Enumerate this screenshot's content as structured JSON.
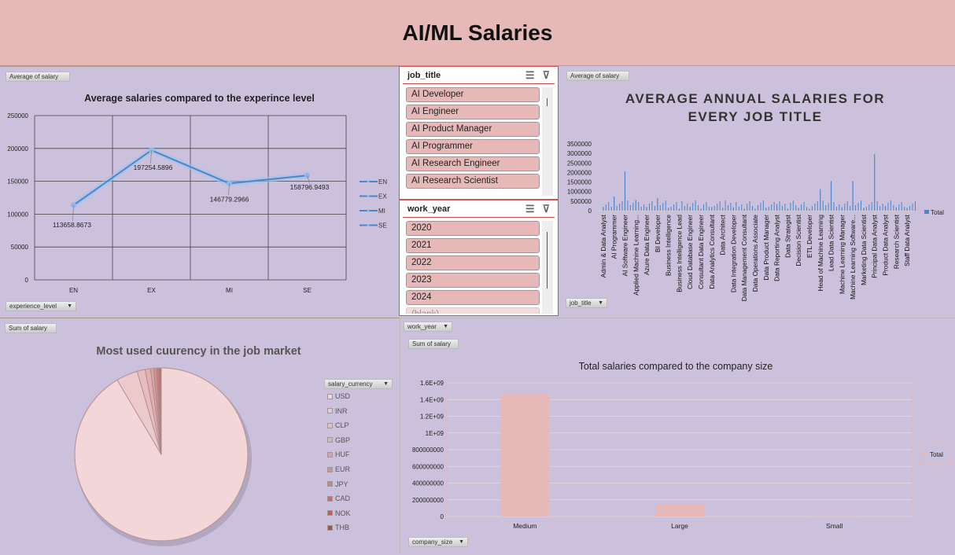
{
  "title": "AI/ML Salaries",
  "line_panel": {
    "field_value": "Average of salary",
    "field_axis": "experience_level"
  },
  "slicers": {
    "job_title": {
      "label": "job_title",
      "items": [
        "AI Developer",
        "AI Engineer",
        "AI Product Manager",
        "AI Programmer",
        "AI Research Engineer",
        "AI Research Scientist"
      ]
    },
    "work_year": {
      "label": "work_year",
      "items": [
        "2020",
        "2021",
        "2022",
        "2023",
        "2024",
        "(blank)"
      ]
    },
    "icons": [
      "multi-select-icon",
      "clear-filter-icon"
    ]
  },
  "jobs_panel": {
    "field_value": "Average of salary",
    "field_axis": "job_title"
  },
  "pie_panel": {
    "field_value": "Sum of salary",
    "field_legend": "salary_currency"
  },
  "size_panel": {
    "field_filter": "work_year",
    "field_value": "Sum of salary",
    "field_axis": "company_size"
  },
  "colors": {
    "title_band": "#e6b8b8",
    "panel": "#cbc1dc",
    "line": "#4a86c8",
    "bar_blue": "#4a86c8",
    "bar_pink": "#e6b8b8"
  },
  "chart_data": [
    {
      "type": "line",
      "title": "Average salaries compared to the experince level",
      "categories": [
        "EN",
        "EX",
        "MI",
        "SE"
      ],
      "values": [
        113658.8673,
        197254.5896,
        146779.2966,
        158796.9493
      ],
      "data_labels": [
        "113658.8673",
        "197254.5896",
        "146779.2966",
        "158796.9493"
      ],
      "ylim": [
        0,
        250000
      ],
      "yticks": [
        "0",
        "50000",
        "100000",
        "150000",
        "200000",
        "250000"
      ],
      "legend": [
        "EN",
        "EX",
        "MI",
        "SE"
      ],
      "legend_position": "right",
      "grid": true
    },
    {
      "type": "bar",
      "title": "AVERAGE ANNUAL SALARIES FOR EVERY JOB TITLE",
      "categories": [
        "Admin & Data Analyst",
        "AI Programmer",
        "AI Software Engineer",
        "Applied Machine Learning...",
        "Azure Data Engineer",
        "BI Developer",
        "Business Intelligence",
        "Business Intelligence Lead",
        "Cloud Database Engineer",
        "Consultant Data Engineer",
        "Data Analytics Consultant",
        "Data Architect",
        "Data Integration Developer",
        "Data Management Consultant",
        "Data Operations Associate",
        "Data Product Manager",
        "Data Reporting Analyst",
        "Data Strategist",
        "Decision Scientist",
        "ETL Developer",
        "Head of Machine Learning",
        "Lead Data Scientist",
        "Machine Learning Manager",
        "Machine Learning Software...",
        "Marketing Data Scientist",
        "Principal Data Analyst",
        "Product Data Analyst",
        "Research Scientist",
        "Staff Data Analyst"
      ],
      "values": [
        200000,
        750000,
        2050000,
        550000,
        200000,
        650000,
        150000,
        100000,
        200000,
        100000,
        200000,
        150000,
        180000,
        100000,
        100000,
        150000,
        350000,
        100000,
        150000,
        100000,
        1130000,
        1550000,
        180000,
        1550000,
        150000,
        2950000,
        250000,
        180000,
        150000
      ],
      "ylim": [
        0,
        3500000
      ],
      "yticks": [
        "0",
        "500000",
        "1000000",
        "1500000",
        "2000000",
        "2500000",
        "3000000",
        "3500000"
      ],
      "legend": [
        "Total"
      ],
      "legend_position": "right"
    },
    {
      "type": "pie",
      "title": "Most used cuurency in the job market",
      "categories": [
        "USD",
        "INR",
        "CLP",
        "GBP",
        "HUF",
        "EUR",
        "JPY",
        "CAD",
        "NOK",
        "THB"
      ],
      "values": [
        91.5,
        4.0,
        1.5,
        1.0,
        0.6,
        0.5,
        0.3,
        0.3,
        0.2,
        0.1
      ],
      "colors": [
        "#f3d6d8",
        "#ecc9cb",
        "#e6bcbe",
        "#dfb0b1",
        "#d8a2a2",
        "#d09191",
        "#c98484",
        "#c46f6f",
        "#c35b58",
        "#b84a44"
      ],
      "legend_position": "right"
    },
    {
      "type": "bar",
      "title": "Total salaries compared to the company size",
      "categories": [
        "Medium",
        "Large",
        "Small"
      ],
      "values": [
        1470000000,
        140000000,
        3000000
      ],
      "ylim": [
        0,
        1600000000
      ],
      "yticks": [
        "0",
        "200000000",
        "400000000",
        "600000000",
        "800000000",
        "1E+09",
        "1.2E+09",
        "1.4E+09",
        "1.6E+09"
      ],
      "legend": [
        "Total"
      ],
      "legend_position": "right",
      "grid": true
    }
  ]
}
